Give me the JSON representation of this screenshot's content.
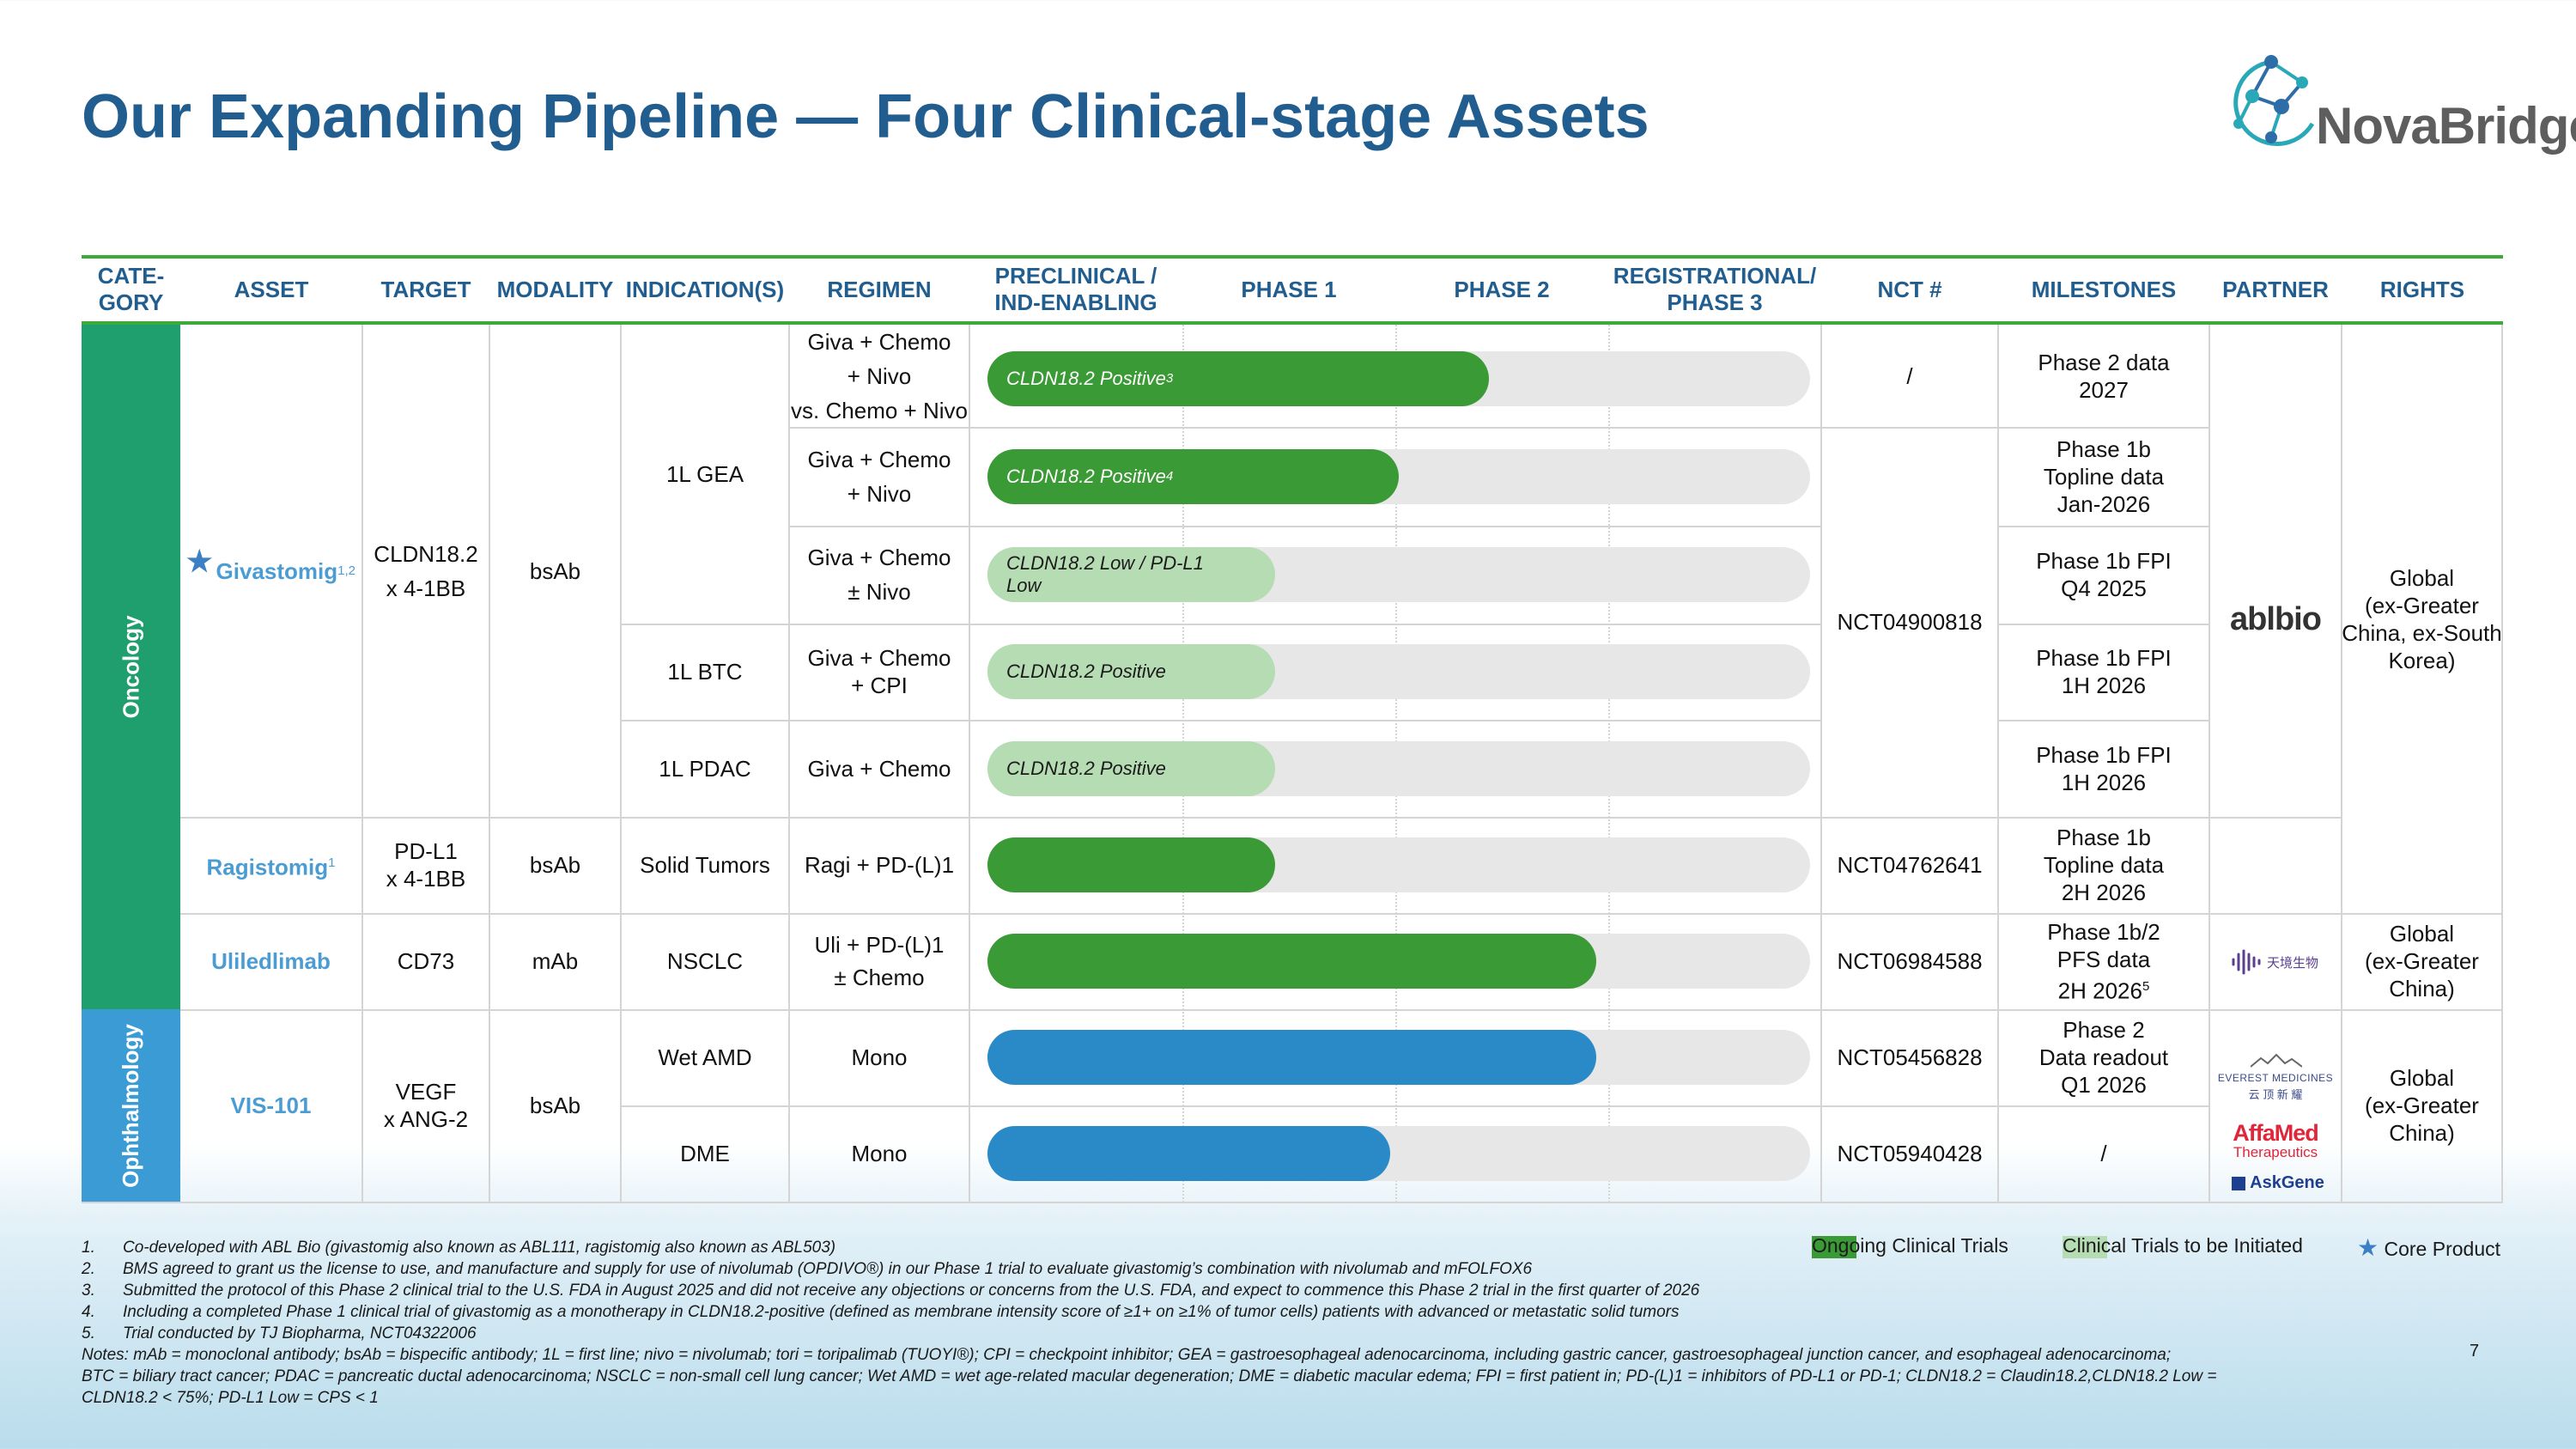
{
  "title": "Our Expanding Pipeline — Four Clinical-stage Assets",
  "logo": {
    "name": "NovaBridge"
  },
  "columns": {
    "category": "CATE-\nGORY",
    "asset": "ASSET",
    "target": "TARGET",
    "modality": "MODALITY",
    "indication": "INDICATION(S)",
    "regimen": "REGIMEN",
    "preclinical": "PRECLINICAL /\nIND-ENABLING",
    "phase1": "PHASE 1",
    "phase2": "PHASE 2",
    "phase3": "REGISTRATIONAL/\nPHASE 3",
    "nct": "NCT #",
    "milestones": "MILESTONES",
    "partner": "PARTNER",
    "rights": "RIGHTS"
  },
  "categories": {
    "oncology": "Oncology",
    "ophthalmology": "Ophthalmology"
  },
  "assets": {
    "givastomig": {
      "name": "Givastomig",
      "sup": "1,2",
      "target": "CLDN18.2\nx 4-1BB",
      "modality": "bsAb"
    },
    "ragistomig": {
      "name": "Ragistomig",
      "sup": "1",
      "target": "PD-L1\nx 4-1BB",
      "modality": "bsAb",
      "indication": "Solid Tumors",
      "regimen": "Ragi + PD-(L)1",
      "nct": "NCT04762641",
      "milestone": "Phase 1b\nTopline data\n2H 2026"
    },
    "uliledlimab": {
      "name": "Uliledlimab",
      "target": "CD73",
      "modality": "mAb",
      "indication": "NSCLC",
      "regimen": "Uli + PD-(L)1\n± Chemo",
      "nct": "NCT06984588",
      "milestone": "Phase 1b/2\nPFS data\n2H 2026",
      "milestone_sup": "5",
      "rights": "Global\n(ex-Greater\nChina)"
    },
    "vis101": {
      "name": "VIS-101",
      "target": "VEGF\nx ANG-2",
      "modality": "bsAb",
      "rights": "Global\n(ex-Greater\nChina)"
    }
  },
  "givastomig_rows": {
    "ind_gea": "1L GEA",
    "ind_btc": "1L BTC",
    "ind_pdac": "1L PDAC",
    "reg1": "Giva + Chemo\n+ Nivo\nvs. Chemo + Nivo",
    "reg2": "Giva + Chemo\n+ Nivo",
    "reg3": "Giva + Chemo\n± Nivo",
    "reg4": "Giva + Chemo\n+ CPI",
    "reg5": "Giva + Chemo",
    "nct1": "/",
    "nct_shared": "NCT04900818",
    "ms1": "Phase 2 data\n2027",
    "ms2": "Phase 1b\nTopline data\nJan-2026",
    "ms3": "Phase 1b FPI\nQ4 2025",
    "ms4": "Phase 1b FPI\n1H 2026",
    "ms5": "Phase 1b FPI\n1H 2026",
    "rights": "Global\n(ex-Greater\nChina, ex-South\nKorea)"
  },
  "vis_rows": {
    "ind1": "Wet AMD",
    "reg1": "Mono",
    "nct1": "NCT05456828",
    "ms1": "Phase 2\nData readout\nQ1 2026",
    "ind2": "DME",
    "reg2": "Mono",
    "nct2": "NCT05940428",
    "ms2": "/"
  },
  "bars": [
    {
      "label": "CLDN18.2 Positive",
      "sup": "3",
      "progress": 0.61,
      "status": "ongoing"
    },
    {
      "label": "CLDN18.2 Positive",
      "sup": "4",
      "progress": 0.5,
      "status": "ongoing"
    },
    {
      "label": "CLDN18.2 Low / PD-L1\nLow",
      "sup": "",
      "progress": 0.35,
      "status": "to-be-initiated"
    },
    {
      "label": "CLDN18.2 Positive",
      "sup": "",
      "progress": 0.35,
      "status": "to-be-initiated"
    },
    {
      "label": "CLDN18.2 Positive",
      "sup": "",
      "progress": 0.35,
      "status": "to-be-initiated"
    },
    {
      "label": "",
      "sup": "",
      "progress": 0.35,
      "status": "ongoing"
    },
    {
      "label": "",
      "sup": "",
      "progress": 0.74,
      "status": "ongoing"
    },
    {
      "label": "",
      "sup": "",
      "progress": 0.74,
      "status": "ophthalmology"
    },
    {
      "label": "",
      "sup": "",
      "progress": 0.49,
      "status": "ophthalmology"
    }
  ],
  "partners": {
    "ablbio": "ablbio",
    "tj": "天境生物",
    "everest_en": "EVEREST MEDICINES",
    "everest_cn": "云 顶 新 耀",
    "affamed": "AffaMed",
    "affamed_sub": "Therapeutics",
    "askgene": "AskGene"
  },
  "legend": {
    "ongoing": "Ongoing Clinical Trials",
    "to_be_initiated": "Clinical Trials to be Initiated",
    "core": "Core Product"
  },
  "notes": [
    {
      "num": "1.",
      "text": "Co-developed with ABL Bio (givastomig also known as ABL111, ragistomig also known as ABL503)"
    },
    {
      "num": "2.",
      "text": "BMS agreed to grant us the license to use, and manufacture and supply for use of nivolumab (OPDIVO®) in our Phase 1 trial  to evaluate givastomig’s combination with nivolumab and mFOLFOX6"
    },
    {
      "num": "3.",
      "text": "Submitted the protocol of this Phase 2 clinical trial to the U.S. FDA in August 2025 and did not receive any objections or concerns from the U.S. FDA, and expect to commence this Phase 2 trial in the first quarter of 2026"
    },
    {
      "num": "4.",
      "text": "Including a completed Phase 1 clinical trial of givastomig as a monotherapy in CLDN18.2-positive (defined as membrane intensity score of ≥1+ on ≥1% of tumor cells) patients with advanced or metastatic solid tumors"
    },
    {
      "num": "5.",
      "text": "Trial conducted by TJ Biopharma, NCT04322006"
    }
  ],
  "abbrev": "Notes: mAb = monoclonal antibody; bsAb = bispecific antibody; 1L = first line; nivo = nivolumab; tori = toripalimab (TUOYI®); CPI = checkpoint inhibitor; GEA = gastroesophageal adenocarcinoma, including gastric cancer, gastroesophageal junction cancer, and esophageal adenocarcinoma;\nBTC = biliary tract cancer; PDAC = pancreatic ductal adenocarcinoma; NSCLC = non-small cell lung cancer; Wet AMD = wet age-related macular degeneration; DME = diabetic macular edema; FPI = first patient in; PD-(L)1 = inhibitors of PD-L1 or PD-1; CLDN18.2 = Claudin18.2,CLDN18.2 Low =\nCLDN18.2 < 75%; PD-L1 Low = CPS < 1",
  "page_number": "7",
  "colors": {
    "title": "#215e8f",
    "ongoing": "#3a9a35",
    "to_be_initiated": "#b5dcb2",
    "ophthalmology_bar": "#2a8ac8",
    "oncology_band": "#1f9e6e",
    "ophthalmology_band": "#3b9bd4",
    "header_rule": "#3aaa3a"
  }
}
